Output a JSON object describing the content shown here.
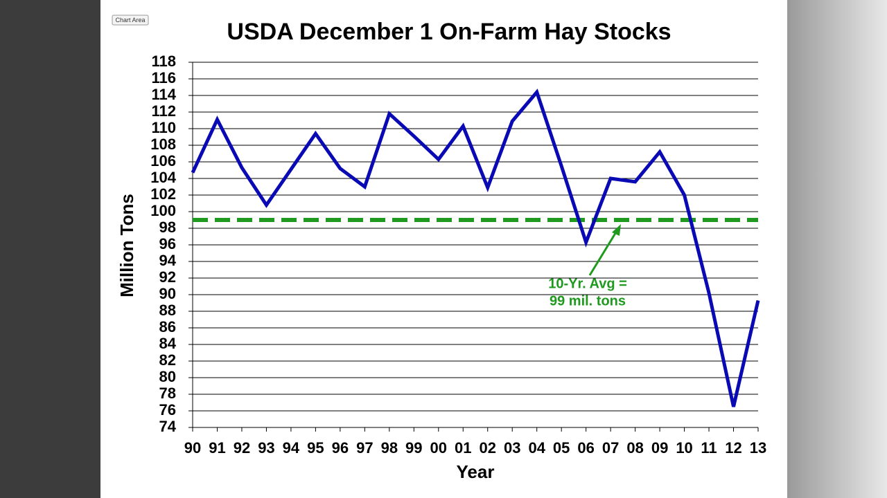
{
  "ui_label": "Chart Area",
  "chart_data": {
    "type": "line",
    "title": "USDA December 1 On-Farm Hay Stocks",
    "x_label": "Year",
    "y_label": "Million Tons",
    "categories": [
      "90",
      "91",
      "92",
      "93",
      "94",
      "95",
      "96",
      "97",
      "98",
      "99",
      "00",
      "01",
      "02",
      "03",
      "04",
      "05",
      "06",
      "07",
      "08",
      "09",
      "10",
      "11",
      "12",
      "13"
    ],
    "series": [
      {
        "name": "Hay stocks",
        "color": "#0a0ab4",
        "values": [
          104.7,
          111.1,
          105.3,
          100.8,
          105.1,
          109.4,
          105.2,
          103.0,
          111.8,
          109.1,
          106.3,
          110.3,
          102.9,
          110.9,
          114.4,
          105.5,
          96.3,
          104.0,
          103.6,
          107.2,
          102.0,
          90.2,
          76.5,
          89.3
        ]
      }
    ],
    "ylim": [
      74,
      118
    ],
    "yticks": [
      74,
      76,
      78,
      80,
      82,
      84,
      86,
      88,
      90,
      92,
      94,
      96,
      98,
      100,
      102,
      104,
      106,
      108,
      110,
      112,
      114,
      116,
      118
    ],
    "grid": true,
    "reference_line": {
      "value": 99,
      "color": "#1f9a1f"
    },
    "annotation": [
      "10-Yr. Avg =",
      "99 mil. tons"
    ]
  }
}
